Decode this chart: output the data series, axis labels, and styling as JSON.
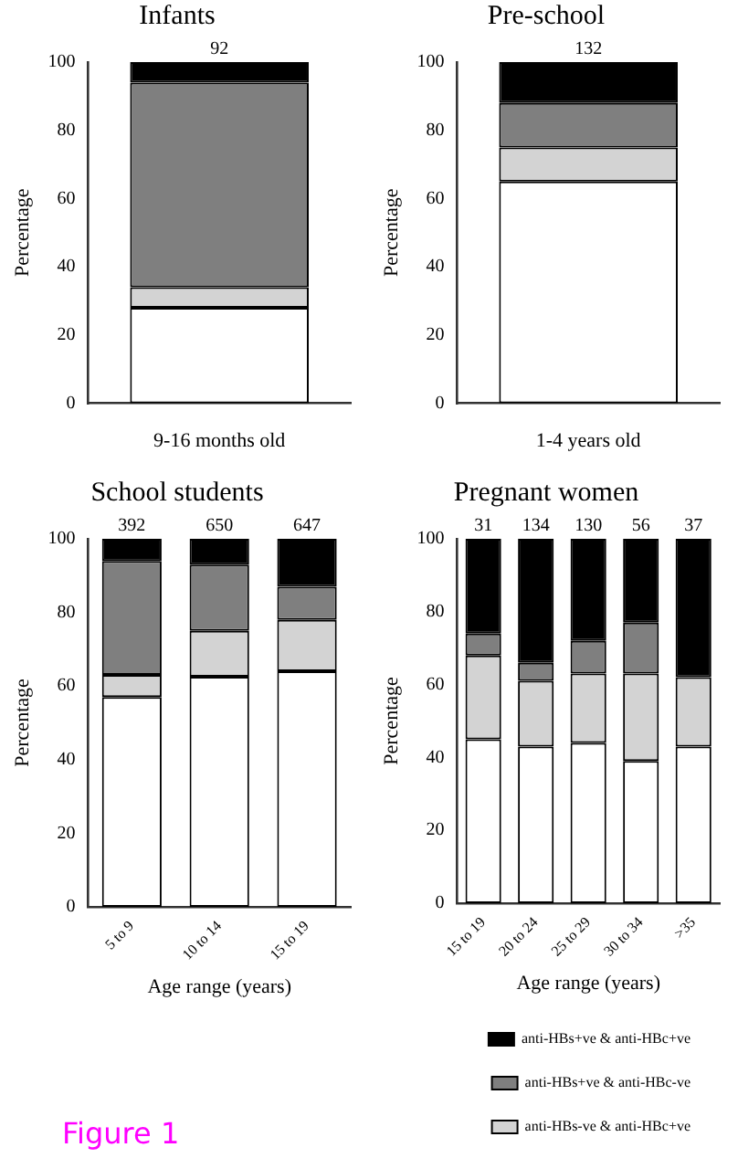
{
  "chart_data": [
    {
      "type": "bar",
      "stacked": true,
      "title": "Infants",
      "ylabel": "Percentage",
      "categories": [
        "9-16 months old"
      ],
      "ylim": [
        0,
        100
      ],
      "yticks": [
        0,
        20,
        40,
        60,
        80,
        100
      ],
      "grid": false,
      "legend": false,
      "annotations": [
        {
          "text": "92",
          "x": "9-16 months old",
          "y": 100
        }
      ],
      "series": [
        {
          "color": "#ffffff",
          "values": [
            28
          ]
        },
        {
          "color": "#d3d3d3",
          "values": [
            6
          ]
        },
        {
          "color": "#7f7f7f",
          "values": [
            60
          ]
        },
        {
          "color": "#000000",
          "values": [
            6
          ]
        }
      ]
    },
    {
      "type": "bar",
      "stacked": true,
      "title": "Pre-school",
      "ylabel": "Percentage",
      "categories": [
        "1-4 years old"
      ],
      "ylim": [
        0,
        100
      ],
      "yticks": [
        0,
        20,
        40,
        60,
        80,
        100
      ],
      "grid": false,
      "legend": false,
      "annotations": [
        {
          "text": "132",
          "x": "1-4 years old",
          "y": 100
        }
      ],
      "series": [
        {
          "color": "#ffffff",
          "values": [
            65
          ]
        },
        {
          "color": "#d3d3d3",
          "values": [
            10
          ]
        },
        {
          "color": "#7f7f7f",
          "values": [
            13
          ]
        },
        {
          "color": "#000000",
          "values": [
            12
          ]
        }
      ]
    },
    {
      "type": "bar",
      "stacked": true,
      "title": "School students",
      "ylabel": "Percentage",
      "xlabel": "Age range (years)",
      "categories": [
        "5 to 9",
        "10 to 14",
        "15 to 19"
      ],
      "ylim": [
        0,
        100
      ],
      "yticks": [
        0,
        20,
        40,
        60,
        80,
        100
      ],
      "grid": false,
      "legend": false,
      "annotations": [
        {
          "text": "392",
          "x": "5 to 9",
          "y": 100
        },
        {
          "text": "650",
          "x": "10 to 14",
          "y": 100
        },
        {
          "text": "647",
          "x": "15 to 19",
          "y": 100
        },
        "Figure 1"
      ],
      "series": [
        {
          "color": "#ffffff",
          "values": [
            57,
            62.5,
            64
          ]
        },
        {
          "color": "#d3d3d3",
          "values": [
            6,
            12.5,
            14
          ]
        },
        {
          "color": "#7f7f7f",
          "values": [
            31,
            18,
            9
          ]
        },
        {
          "color": "#000000",
          "values": [
            6,
            7,
            13
          ]
        }
      ]
    },
    {
      "type": "bar",
      "stacked": true,
      "title": "Pregnant women",
      "ylabel": "Percentage",
      "xlabel": "Age range (years)",
      "categories": [
        "15 to 19",
        "20 to 24",
        "25 to 29",
        "30 to 34",
        ">35"
      ],
      "ylim": [
        0,
        100
      ],
      "yticks": [
        0,
        20,
        40,
        60,
        80,
        100
      ],
      "grid": false,
      "legend": "bottom right",
      "annotations": [
        {
          "text": "31",
          "x": "15 to 19",
          "y": 100
        },
        {
          "text": "134",
          "x": "20 to 24",
          "y": 100
        },
        {
          "text": "130",
          "x": "25 to 29",
          "y": 100
        },
        {
          "text": "56",
          "x": "30 to 34",
          "y": 100
        },
        {
          "text": "37",
          "x": ">35",
          "y": 100
        }
      ],
      "series": [
        {
          "color": "#ffffff",
          "values": [
            45,
            43,
            44,
            39,
            43
          ]
        },
        {
          "name": "anti-HBs-ve & anti-HBc+ve",
          "color": "#d3d3d3",
          "values": [
            23,
            18,
            19,
            24,
            19
          ]
        },
        {
          "name": "anti-HBs+ve & anti-HBc-ve",
          "color": "#7f7f7f",
          "values": [
            6,
            5,
            9,
            14,
            0
          ]
        },
        {
          "name": "anti-HBs+ve & anti-HBc+ve",
          "color": "#000000",
          "values": [
            26,
            34,
            28,
            23,
            38
          ]
        }
      ]
    }
  ]
}
